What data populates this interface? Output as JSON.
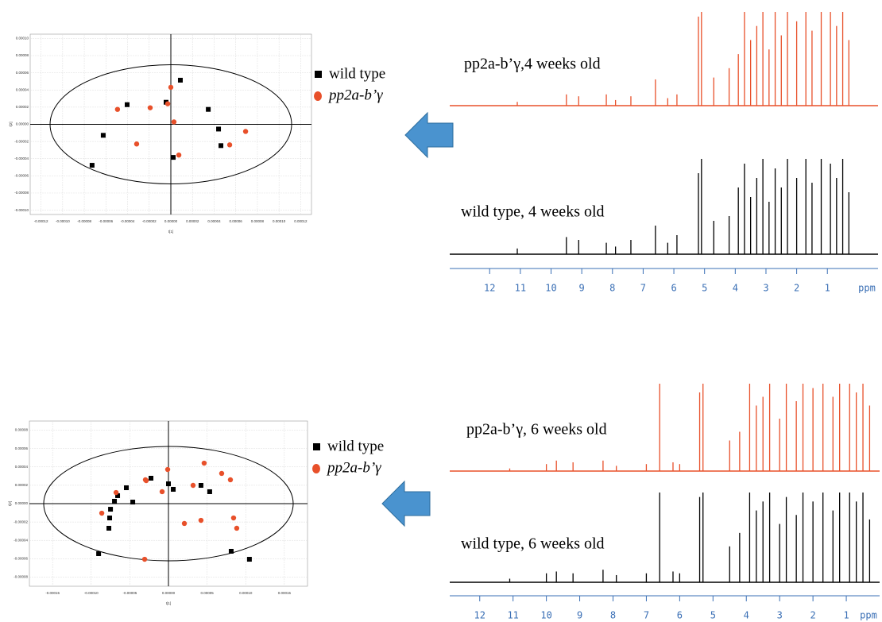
{
  "chart_data": [
    {
      "type": "scatter",
      "xlabel": "t[1]",
      "ylabel": "t[2]",
      "grid": true,
      "legend": "right",
      "xlim": [
        -0.00013,
        0.00013
      ],
      "ylim": [
        -0.000105,
        0.000105
      ],
      "xticks": [
        {
          "value": -0.00012,
          "label": "-0.00012"
        },
        {
          "value": -0.0001,
          "label": "-0.00010"
        },
        {
          "value": -8e-05,
          "label": "-0.00008"
        },
        {
          "value": -6e-05,
          "label": "-0.00006"
        },
        {
          "value": -4e-05,
          "label": "-0.00004"
        },
        {
          "value": -2e-05,
          "label": "-0.00002"
        },
        {
          "value": 0,
          "label": "0.00000"
        },
        {
          "value": 2e-05,
          "label": "0.00002"
        },
        {
          "value": 4e-05,
          "label": "0.00004"
        },
        {
          "value": 6e-05,
          "label": "0.00006"
        },
        {
          "value": 8e-05,
          "label": "0.00008"
        },
        {
          "value": 0.0001,
          "label": "0.00010"
        },
        {
          "value": 0.00012,
          "label": "0.00012"
        }
      ],
      "yticks": [
        {
          "value": 0.0001,
          "label": "0.00010"
        },
        {
          "value": 8e-05,
          "label": "0.00008"
        },
        {
          "value": 6e-05,
          "label": "0.00006"
        },
        {
          "value": 4e-05,
          "label": "0.00004"
        },
        {
          "value": 2e-05,
          "label": "0.00002"
        },
        {
          "value": 0,
          "label": "0.00000"
        },
        {
          "value": -2e-05,
          "label": "-0.00002"
        },
        {
          "value": -4e-05,
          "label": "-0.00004"
        },
        {
          "value": -6e-05,
          "label": "-0.00006"
        },
        {
          "value": -8e-05,
          "label": "-0.00008"
        },
        {
          "value": -0.0001,
          "label": "-0.00010"
        }
      ],
      "series": [
        {
          "name": "wild type",
          "color": "#000000",
          "marker": "square",
          "x": [
            -4.04e-05,
            -4.4e-06,
            8.8e-06,
            3.46e-05,
            -6.25e-05,
            -7.28e-05,
            2.2e-06,
            4.41e-05,
            4.63e-05
          ],
          "values": [
            2.29e-05,
            2.57e-05,
            5.14e-05,
            1.74e-05,
            -1.28e-05,
            -4.77e-05,
            -3.85e-05,
            -5.5e-06,
            -2.48e-05
          ]
        },
        {
          "name": "pp2a-b’γ",
          "color": "#e8502a",
          "marker": "circle",
          "x": [
            -4.93e-05,
            -1.91e-05,
            -2.9e-06,
            0,
            2.9e-06,
            -3.16e-05,
            7.4e-06,
            5.44e-05,
            6.91e-05
          ],
          "values": [
            1.74e-05,
            1.93e-05,
            2.39e-05,
            4.31e-05,
            2.8e-06,
            -2.29e-05,
            -3.58e-05,
            -2.39e-05,
            -8.3e-06
          ]
        }
      ]
    },
    {
      "type": "spectrum",
      "xlabel": "ppm",
      "xlim": [
        13.3,
        -0.65
      ],
      "xticks": [
        12,
        11,
        10,
        9,
        8,
        7,
        6,
        5,
        4,
        3,
        2,
        1
      ],
      "x": [
        11.1,
        9.5,
        9.1,
        8.2,
        7.9,
        7.4,
        6.6,
        6.2,
        5.9,
        5.2,
        5.1,
        4.7,
        4.2,
        3.9,
        3.7,
        3.5,
        3.3,
        3.1,
        2.9,
        2.7,
        2.5,
        2.3,
        2.0,
        1.7,
        1.5,
        1.2,
        0.9,
        0.7,
        0.5,
        0.3
      ],
      "series": [
        {
          "name": "pp2a-b’γ,4 weeks old",
          "color": "#e8502a",
          "values": [
            4,
            12,
            10,
            12,
            6,
            10,
            28,
            8,
            12,
            95,
            100,
            30,
            40,
            55,
            100,
            70,
            85,
            100,
            60,
            100,
            75,
            100,
            90,
            100,
            80,
            100,
            100,
            85,
            100,
            70
          ]
        },
        {
          "name": "wild type, 4 weeks old",
          "color": "#000000",
          "values": [
            6,
            18,
            15,
            12,
            8,
            15,
            30,
            12,
            20,
            85,
            100,
            35,
            40,
            70,
            95,
            60,
            80,
            100,
            55,
            90,
            70,
            100,
            80,
            100,
            75,
            100,
            95,
            80,
            100,
            65
          ]
        }
      ]
    },
    {
      "type": "scatter",
      "xlabel": "t[1]",
      "ylabel": "t[2]",
      "grid": true,
      "legend": "right",
      "xlim": [
        -0.00018,
        0.00018
      ],
      "ylim": [
        -9e-05,
        9e-05
      ],
      "xticks": [
        {
          "value": -0.00015,
          "label": "-0.00015"
        },
        {
          "value": -0.0001,
          "label": "-0.00010"
        },
        {
          "value": -5e-05,
          "label": "-0.00005"
        },
        {
          "value": 0,
          "label": "0.00000"
        },
        {
          "value": 5e-05,
          "label": "0.00005"
        },
        {
          "value": 0.0001,
          "label": "0.00010"
        },
        {
          "value": 0.00015,
          "label": "0.00015"
        }
      ],
      "yticks": [
        {
          "value": 8e-05,
          "label": "0.00008"
        },
        {
          "value": 6e-05,
          "label": "0.00006"
        },
        {
          "value": 4e-05,
          "label": "0.00004"
        },
        {
          "value": 2e-05,
          "label": "0.00002"
        },
        {
          "value": 0,
          "label": "0.00000"
        },
        {
          "value": -2e-05,
          "label": "-0.00002"
        },
        {
          "value": -4e-05,
          "label": "-0.00004"
        },
        {
          "value": -6e-05,
          "label": "-0.00006"
        },
        {
          "value": -8e-05,
          "label": "-0.00008"
        }
      ],
      "series": [
        {
          "name": "wild type",
          "color": "#000000",
          "marker": "square",
          "x": [
            -2.26e-05,
            0,
            6.2e-06,
            4.21e-05,
            5.34e-05,
            -5.45e-05,
            -6.58e-05,
            -6.99e-05,
            -4.62e-05,
            -7.5e-05,
            -7.61e-05,
            -7.71e-05,
            -9.04e-05,
            8.12e-05,
            0.0001048
          ],
          "values": [
            2.77e-05,
            2.16e-05,
            1.56e-05,
            1.99e-05,
            1.3e-05,
            1.73e-05,
            8.7e-06,
            2.6e-06,
            1.7e-06,
            -6.1e-06,
            -1.56e-05,
            -2.68e-05,
            -5.45e-05,
            -5.19e-05,
            -6.06e-05
          ]
        },
        {
          "name": "pp2a-b’γ",
          "color": "#e8502a",
          "marker": "circle",
          "x": [
            -1e-06,
            4.62e-05,
            6.89e-05,
            8.02e-05,
            3.19e-05,
            -2.88e-05,
            -8.2e-06,
            -6.78e-05,
            -2.98e-05,
            -8.63e-05,
            2.06e-05,
            4.21e-05,
            8.43e-05,
            8.84e-05,
            -3.08e-05
          ],
          "values": [
            3.72e-05,
            4.41e-05,
            3.29e-05,
            2.6e-05,
            1.99e-05,
            2.51e-05,
            1.3e-05,
            1.21e-05,
            2.6e-05,
            -1.04e-05,
            -2.16e-05,
            -1.82e-05,
            -1.56e-05,
            -2.68e-05,
            -6.06e-05
          ]
        }
      ]
    },
    {
      "type": "spectrum",
      "xlabel": "ppm",
      "xlim": [
        12.9,
        0
      ],
      "xticks": [
        12,
        11,
        10,
        9,
        8,
        7,
        6,
        5,
        4,
        3,
        2,
        1
      ],
      "x": [
        11.1,
        10.0,
        9.7,
        9.2,
        8.3,
        7.9,
        7.0,
        6.6,
        6.2,
        6.0,
        5.4,
        5.3,
        4.5,
        4.2,
        3.9,
        3.7,
        3.5,
        3.3,
        3.0,
        2.8,
        2.5,
        2.3,
        2.0,
        1.7,
        1.4,
        1.2,
        0.9,
        0.7,
        0.5,
        0.3
      ],
      "series": [
        {
          "name": "pp2a-b’γ, 6 weeks old",
          "color": "#e8502a",
          "values": [
            3,
            8,
            12,
            10,
            12,
            6,
            8,
            100,
            10,
            8,
            90,
            100,
            35,
            45,
            100,
            75,
            85,
            100,
            60,
            100,
            80,
            100,
            95,
            100,
            85,
            100,
            100,
            90,
            100,
            75
          ]
        },
        {
          "name": "wild type, 6 weeks old",
          "color": "#000000",
          "values": [
            4,
            10,
            12,
            10,
            14,
            8,
            10,
            100,
            12,
            10,
            95,
            100,
            40,
            55,
            100,
            80,
            90,
            100,
            65,
            95,
            75,
            100,
            90,
            100,
            80,
            100,
            100,
            90,
            100,
            70
          ]
        }
      ]
    }
  ]
}
